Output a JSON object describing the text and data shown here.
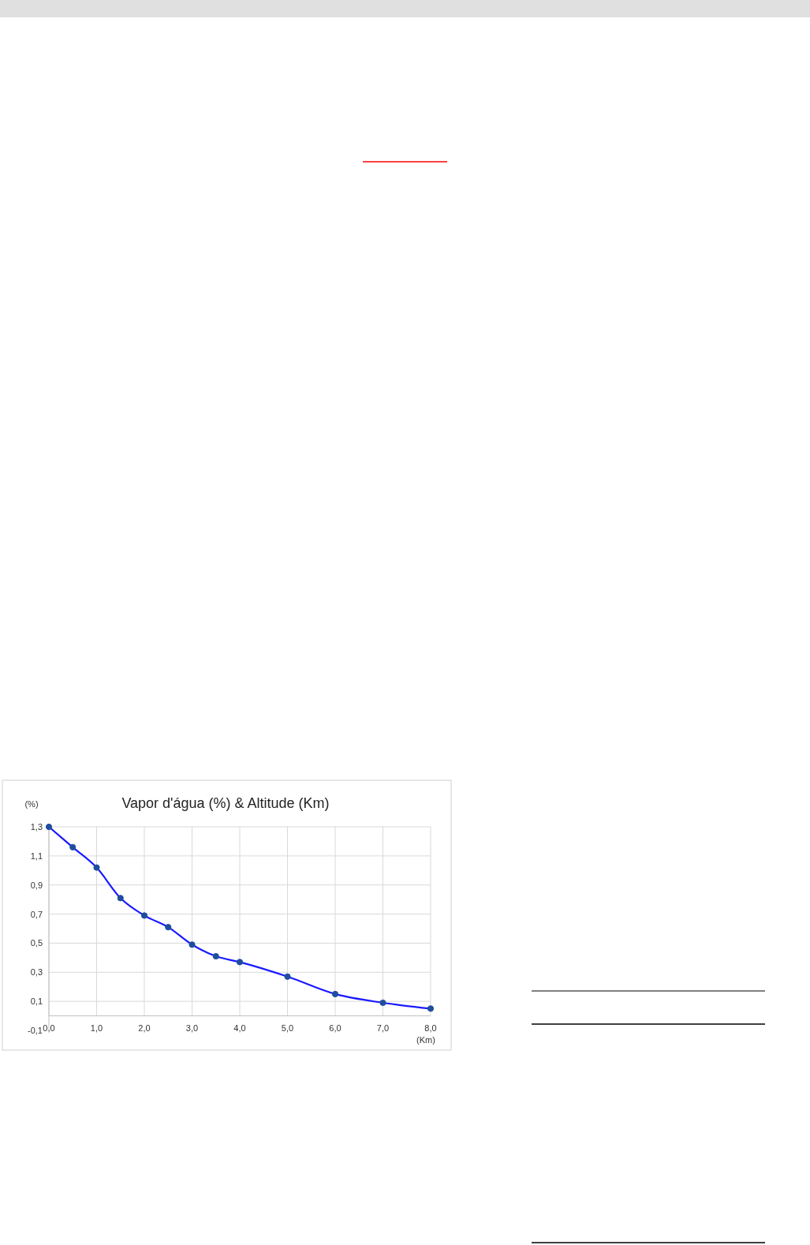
{
  "chart_data": {
    "type": "line",
    "title": "Vapor d'água (%) & Altitude (Km)",
    "xlabel": "(Km)",
    "ylabel": "(%)",
    "x": [
      0,
      0.5,
      1,
      1.5,
      2,
      2.5,
      3,
      3.5,
      4,
      5,
      6,
      7,
      8
    ],
    "series": [
      {
        "color": "#1a1aff",
        "values": [
          1.3,
          1.16,
          1.02,
          0.81,
          0.69,
          0.61,
          0.49,
          0.41,
          0.37,
          0.27,
          0.15,
          0.09,
          0.05
        ]
      }
    ],
    "xlim": [
      0,
      8
    ],
    "xticks": [
      {
        "value": 0,
        "label": "0,0"
      },
      {
        "value": 1,
        "label": "1,0"
      },
      {
        "value": 2,
        "label": "2,0"
      },
      {
        "value": 3,
        "label": "3,0"
      },
      {
        "value": 4,
        "label": "4,0"
      },
      {
        "value": 5,
        "label": "5,0"
      },
      {
        "value": 6,
        "label": "6,0"
      },
      {
        "value": 7,
        "label": "7,0"
      },
      {
        "value": 8,
        "label": "8,0"
      }
    ],
    "ylim": [
      -0.1,
      1.3
    ],
    "yticks": [
      {
        "value": -0.1,
        "label": "-0,1"
      },
      {
        "value": 0.1,
        "label": "0,1"
      },
      {
        "value": 0.3,
        "label": "0,3"
      },
      {
        "value": 0.5,
        "label": "0,5"
      },
      {
        "value": 0.7,
        "label": "0,7"
      },
      {
        "value": 0.9,
        "label": "0,9"
      },
      {
        "value": 1.1,
        "label": "1,1"
      },
      {
        "value": 1.3,
        "label": "1,3"
      }
    ],
    "grid": true,
    "marker": "circle",
    "line_style": "solid"
  }
}
